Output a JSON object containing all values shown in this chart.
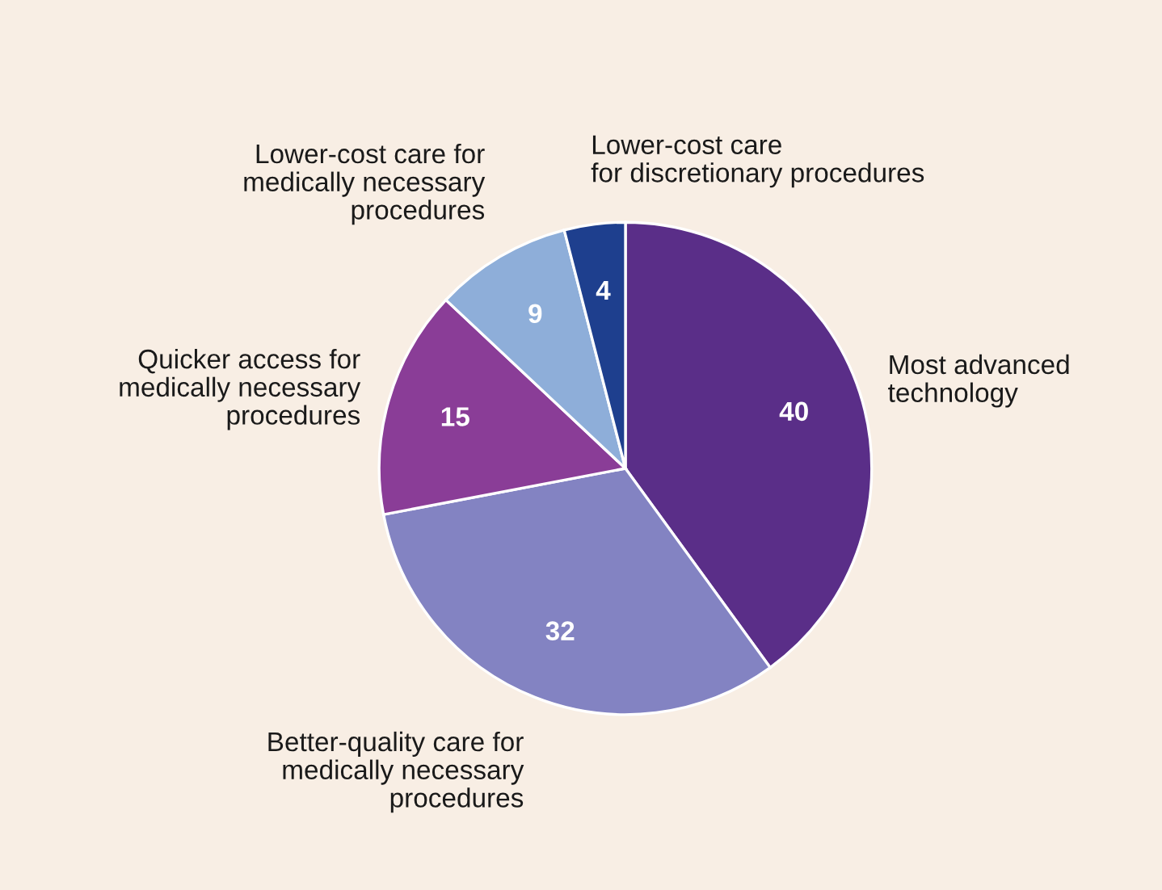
{
  "chart_data": {
    "type": "pie",
    "categories": [
      "Most advanced\ntechnology",
      "Better-quality care for\nmedically necessary\nprocedures",
      "Quicker access for\nmedically necessary\nprocedures",
      "Lower-cost care for\nmedically necessary\nprocedures",
      "Lower-cost care\nfor discretionary procedures"
    ],
    "values": [
      40,
      32,
      15,
      9,
      4
    ],
    "colors": [
      "#5a2e88",
      "#8383c2",
      "#8a3d97",
      "#8eaed9",
      "#1e3f8e"
    ],
    "data_labels": true,
    "legend": false
  }
}
